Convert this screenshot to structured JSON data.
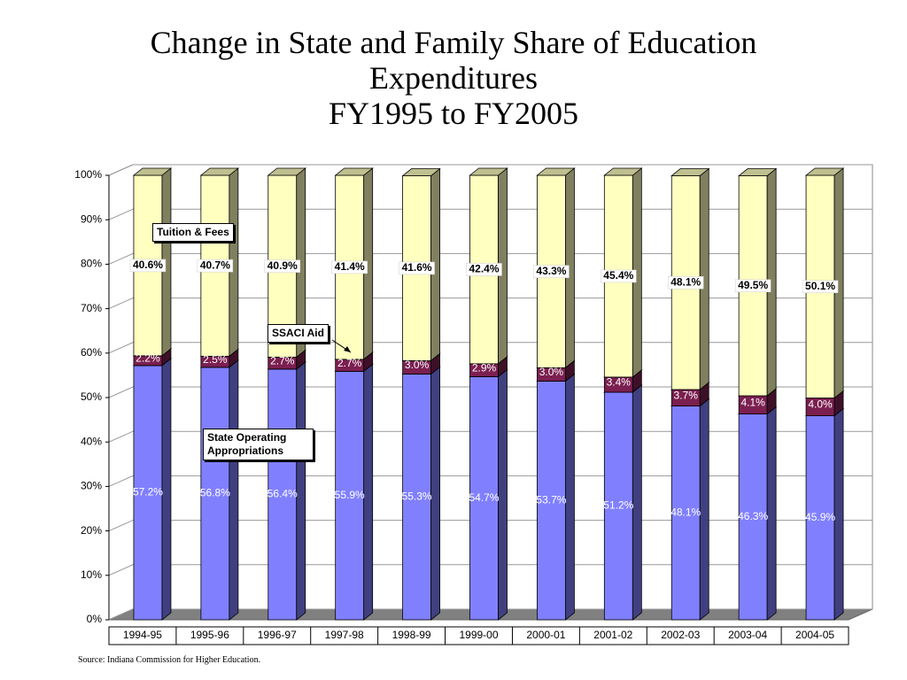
{
  "chart_data": {
    "type": "stacked-bar-3d",
    "title": "Change in State and Family Share of Education Expenditures",
    "subtitle": "FY1995 to FY2005",
    "source": "Source:  Indiana Commission for Higher Education.",
    "categories": [
      "1994-95",
      "1995-96",
      "1996-97",
      "1997-98",
      "1998-99",
      "1999-00",
      "2000-01",
      "2001-02",
      "2002-03",
      "2003-04",
      "2004-05"
    ],
    "series": [
      {
        "name": "State Operating Appropriations",
        "color": "#8080ff",
        "values": [
          57.2,
          56.8,
          56.4,
          55.9,
          55.3,
          54.7,
          53.7,
          51.2,
          48.1,
          46.3,
          45.9
        ],
        "value_labels": [
          "57.2%",
          "56.8%",
          "56.4%",
          "55.9%",
          "55.3%",
          "54.7%",
          "53.7%",
          "51.2%",
          "48.1%",
          "46.3%",
          "45.9%"
        ]
      },
      {
        "name": "SSACI Aid",
        "color": "#7b1f50",
        "values": [
          2.2,
          2.5,
          2.7,
          2.7,
          3.0,
          2.9,
          3.0,
          3.4,
          3.7,
          4.1,
          4.0
        ],
        "value_labels": [
          "2.2%",
          "2.5%",
          "2.7%",
          "2.7%",
          "3.0%",
          "2.9%",
          "3.0%",
          "3.4%",
          "3.7%",
          "4.1%",
          "4.0%"
        ]
      },
      {
        "name": "Tuition & Fees",
        "color": "#ffffc0",
        "values": [
          40.6,
          40.7,
          40.9,
          41.4,
          41.6,
          42.4,
          43.3,
          45.4,
          48.1,
          49.5,
          50.1
        ],
        "value_labels": [
          "40.6%",
          "40.7%",
          "40.9%",
          "41.4%",
          "41.6%",
          "42.4%",
          "43.3%",
          "45.4%",
          "48.1%",
          "49.5%",
          "50.1%"
        ]
      }
    ],
    "ylim": [
      0,
      100
    ],
    "yticks": [
      {
        "value": 0,
        "label": "0%"
      },
      {
        "value": 10,
        "label": "10%"
      },
      {
        "value": 20,
        "label": "20%"
      },
      {
        "value": 30,
        "label": "30%"
      },
      {
        "value": 40,
        "label": "40%"
      },
      {
        "value": 50,
        "label": "50%"
      },
      {
        "value": 60,
        "label": "60%"
      },
      {
        "value": 70,
        "label": "70%"
      },
      {
        "value": 80,
        "label": "80%"
      },
      {
        "value": 90,
        "label": "90%"
      },
      {
        "value": 100,
        "label": "100%"
      }
    ],
    "grid": true
  }
}
